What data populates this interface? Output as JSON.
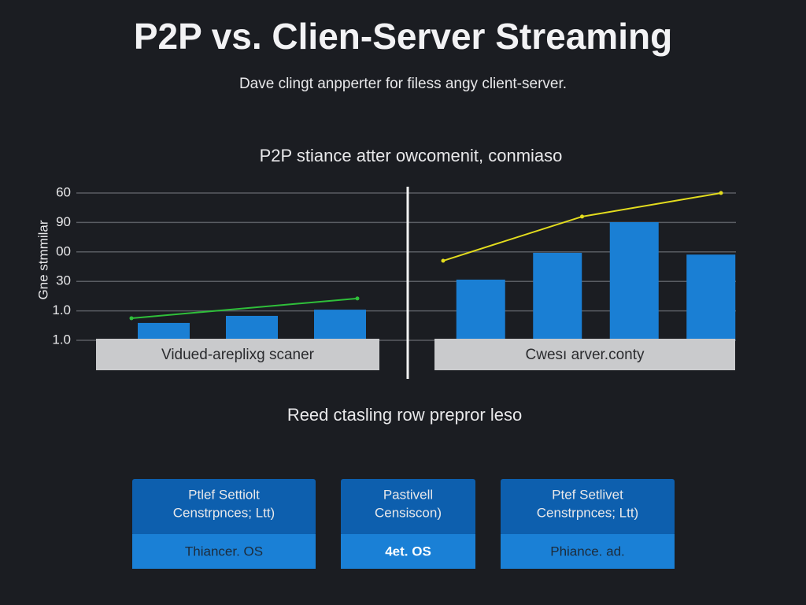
{
  "chart_data": {
    "type": "bar",
    "title": "P2P vs. Clien-Server Streaming",
    "subtitle": "Dave clingt anpperter for filess angy client-server.",
    "chart_title": "P2P stiance atter owcomenit, conmiaso",
    "ylabel": "Gne stmmilar",
    "ylim": [
      0,
      5
    ],
    "yticks": [
      {
        "value": 5,
        "label": "60"
      },
      {
        "value": 4,
        "label": "90"
      },
      {
        "value": 3,
        "label": "00"
      },
      {
        "value": 2,
        "label": "30"
      },
      {
        "value": 1,
        "label": "1.0"
      },
      {
        "value": 0,
        "label": "1.0"
      }
    ],
    "grid": true,
    "panels": [
      {
        "label": "Vidued-areplixg scaner",
        "color": "#1a7fd4",
        "values": [
          0.59,
          0.83,
          1.04
        ],
        "line": {
          "color": "#2fbf3a",
          "values": [
            0.75,
            1.42
          ]
        }
      },
      {
        "label": "Cwesı arver.conty",
        "color": "#1a7fd4",
        "values": [
          2.06,
          2.97,
          4.01,
          2.91
        ],
        "line": {
          "color": "#e3dc1e",
          "values": [
            2.7,
            4.2,
            5.0
          ]
        }
      }
    ],
    "footer": "Reed ctasling row prepror leso"
  },
  "cards": [
    {
      "title": [
        "Ptlef Settiolt",
        "Censtrpnces; Ltt)"
      ],
      "footer": "Thiancer. OS"
    },
    {
      "title": [
        "Pastivell",
        "Censiscon)"
      ],
      "footer": "4et. OS"
    },
    {
      "title": [
        "Ptef Setlivet",
        "Censtrpnces; Ltt)"
      ],
      "footer": "Phiance. ad."
    }
  ]
}
